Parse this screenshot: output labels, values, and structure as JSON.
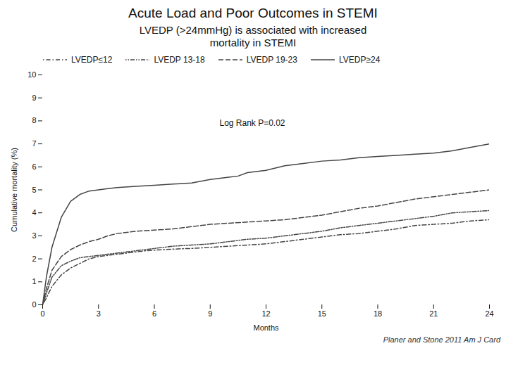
{
  "chart_data": {
    "type": "line",
    "title": "Acute Load and Poor Outcomes in STEMI",
    "subtitle": "LVEDP (>24mmHg) is associated with increased\nmortality in STEMI",
    "xlabel": "Months",
    "ylabel": "Cumulative mortality (%)",
    "xlim": [
      0,
      24
    ],
    "ylim": [
      0,
      10
    ],
    "xticks": [
      0,
      3,
      6,
      9,
      12,
      15,
      18,
      21,
      24
    ],
    "yticks": [
      0,
      1,
      2,
      3,
      4,
      5,
      6,
      7,
      8,
      9,
      10
    ],
    "grid": false,
    "legend": "upper left",
    "annotation": {
      "text": "Log Rank P=0.02",
      "x": 9.5,
      "y": 7.9
    },
    "caption": "Planer and Stone 2011 Am J Card",
    "series": [
      {
        "name": "LVEDP≤12",
        "color": "#444444",
        "line_style": "dashdot",
        "x": [
          0,
          0.2,
          0.5,
          1.0,
          1.5,
          2.0,
          2.5,
          3.0,
          3.5,
          4.0,
          4.5,
          5.0,
          5.5,
          6.0,
          6.5,
          7.0,
          7.5,
          8.0,
          9.0,
          10.0,
          11.0,
          12.0,
          13.0,
          14.0,
          15.0,
          16.0,
          17.0,
          18.0,
          19.0,
          20.0,
          21.0,
          22.0,
          23.0,
          24.0
        ],
        "values": [
          0,
          0.3,
          0.8,
          1.3,
          1.6,
          1.8,
          2.0,
          2.1,
          2.15,
          2.2,
          2.25,
          2.3,
          2.35,
          2.38,
          2.4,
          2.42,
          2.44,
          2.45,
          2.5,
          2.55,
          2.6,
          2.65,
          2.75,
          2.85,
          2.95,
          3.05,
          3.1,
          3.2,
          3.3,
          3.45,
          3.5,
          3.55,
          3.65,
          3.7
        ]
      },
      {
        "name": "LVEDP 13-18",
        "color": "#444444",
        "line_style": "dashdotdot",
        "x": [
          0,
          0.2,
          0.5,
          1.0,
          1.5,
          2.0,
          2.5,
          3.0,
          3.5,
          4.0,
          4.5,
          5.0,
          5.5,
          6.0,
          7.0,
          8.0,
          9.0,
          10.0,
          11.0,
          12.0,
          13.0,
          14.0,
          15.0,
          16.0,
          17.0,
          18.0,
          19.0,
          20.0,
          21.0,
          22.0,
          23.0,
          24.0
        ],
        "values": [
          0,
          0.5,
          1.2,
          1.7,
          1.9,
          2.05,
          2.1,
          2.15,
          2.2,
          2.25,
          2.3,
          2.35,
          2.4,
          2.45,
          2.55,
          2.6,
          2.65,
          2.75,
          2.85,
          2.9,
          3.0,
          3.1,
          3.2,
          3.35,
          3.45,
          3.55,
          3.65,
          3.75,
          3.85,
          4.0,
          4.05,
          4.1
        ]
      },
      {
        "name": "LVEDP 19-23",
        "color": "#444444",
        "line_style": "dashed",
        "x": [
          0,
          0.2,
          0.5,
          1.0,
          1.5,
          2.0,
          2.5,
          3.0,
          3.5,
          4.0,
          5.0,
          6.0,
          7.0,
          8.0,
          9.0,
          10.0,
          11.0,
          12.0,
          13.0,
          14.0,
          15.0,
          16.0,
          17.0,
          18.0,
          19.0,
          20.0,
          21.0,
          22.0,
          23.0,
          24.0
        ],
        "values": [
          0,
          0.7,
          1.5,
          2.1,
          2.4,
          2.6,
          2.75,
          2.85,
          3.0,
          3.1,
          3.2,
          3.25,
          3.3,
          3.4,
          3.5,
          3.55,
          3.6,
          3.65,
          3.7,
          3.8,
          3.9,
          4.05,
          4.2,
          4.3,
          4.45,
          4.6,
          4.7,
          4.8,
          4.9,
          5.0
        ]
      },
      {
        "name": "LVEDP≥24",
        "color": "#444444",
        "line_style": "solid",
        "x": [
          0,
          0.2,
          0.5,
          1.0,
          1.5,
          2.0,
          2.5,
          3.0,
          3.5,
          4.0,
          5.0,
          6.0,
          7.0,
          8.0,
          9.0,
          10.0,
          10.5,
          11.0,
          12.0,
          13.0,
          14.0,
          15.0,
          16.0,
          17.0,
          18.0,
          19.0,
          20.0,
          21.0,
          22.0,
          23.0,
          24.0
        ],
        "values": [
          0,
          1.2,
          2.5,
          3.8,
          4.5,
          4.8,
          4.95,
          5.0,
          5.05,
          5.1,
          5.15,
          5.2,
          5.25,
          5.3,
          5.45,
          5.55,
          5.6,
          5.75,
          5.85,
          6.05,
          6.15,
          6.25,
          6.3,
          6.4,
          6.45,
          6.5,
          6.55,
          6.6,
          6.7,
          6.85,
          7.0
        ]
      }
    ]
  }
}
